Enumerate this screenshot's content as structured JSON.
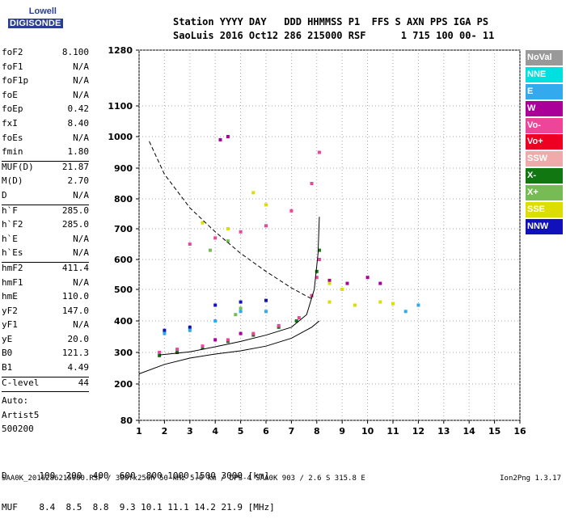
{
  "logo": {
    "line1": "Lowell",
    "line2": "DIGISONDE"
  },
  "header": {
    "line1": "Station YYYY DAY   DDD HHMMSS P1  FFS S AXN PPS IGA PS",
    "line2": "SaoLuis 2016 Oct12 286 215000 RSF      1 715 100 00- 11"
  },
  "params_top": [
    {
      "name": "foF2",
      "value": "8.100"
    },
    {
      "name": "foF1",
      "value": "N/A"
    },
    {
      "name": "foF1p",
      "value": "N/A"
    },
    {
      "name": "foE",
      "value": "N/A"
    },
    {
      "name": "foEp",
      "value": "0.42"
    },
    {
      "name": "fxI",
      "value": "8.40"
    },
    {
      "name": "foEs",
      "value": "N/A"
    },
    {
      "name": "fmin",
      "value": "1.80"
    }
  ],
  "params_muf": [
    {
      "name": "MUF(D)",
      "value": "21.87"
    },
    {
      "name": "M(D)",
      "value": "2.70"
    },
    {
      "name": "D",
      "value": "N/A"
    }
  ],
  "params_h": [
    {
      "name": "h`F",
      "value": "285.0"
    },
    {
      "name": "h`F2",
      "value": "285.0"
    },
    {
      "name": "h`E",
      "value": "N/A"
    },
    {
      "name": "h`Es",
      "value": "N/A"
    }
  ],
  "params_hm": [
    {
      "name": "hmF2",
      "value": "411.4"
    },
    {
      "name": "hmF1",
      "value": "N/A"
    },
    {
      "name": "hmE",
      "value": "110.0"
    },
    {
      "name": "yF2",
      "value": "147.0"
    },
    {
      "name": "yF1",
      "value": "N/A"
    },
    {
      "name": "yE",
      "value": "20.0"
    },
    {
      "name": "B0",
      "value": "121.3"
    },
    {
      "name": "B1",
      "value": "4.49"
    }
  ],
  "clevel": {
    "name": "C-level",
    "value": "44"
  },
  "auto": {
    "line1": "Auto:",
    "line2": "Artist5",
    "line3": "500200"
  },
  "legend": [
    {
      "label": "NoVal",
      "color": "#999999"
    },
    {
      "label": "NNE",
      "color": "#00e0e0"
    },
    {
      "label": "E",
      "color": "#33aaee"
    },
    {
      "label": "W",
      "color": "#aa0099"
    },
    {
      "label": "Vo-",
      "color": "#ee4499"
    },
    {
      "label": "Vo+",
      "color": "#ee0022"
    },
    {
      "label": "SSW",
      "color": "#f0aaaa"
    },
    {
      "label": "X-",
      "color": "#117711"
    },
    {
      "label": "X+",
      "color": "#77bb55"
    },
    {
      "label": "SSE",
      "color": "#dddd00"
    },
    {
      "label": "NNW",
      "color": "#1111bb"
    }
  ],
  "chart_data": {
    "type": "scatter",
    "x_ticks": [
      1,
      2,
      3,
      4,
      5,
      6,
      7,
      8,
      9,
      10,
      11,
      12,
      13,
      14,
      15,
      16
    ],
    "y_ticks": [
      80,
      200,
      300,
      400,
      500,
      600,
      700,
      800,
      900,
      1000,
      1100,
      1280
    ],
    "xlim": [
      1,
      16
    ],
    "ylim": [
      80,
      1280
    ],
    "series": [
      {
        "name": "X-",
        "color": "#117711",
        "points": [
          [
            1.8,
            290
          ],
          [
            2.5,
            300
          ],
          [
            3.5,
            315
          ],
          [
            4.5,
            335
          ],
          [
            5.5,
            355
          ],
          [
            6.5,
            380
          ],
          [
            7.2,
            400
          ],
          [
            7.8,
            480
          ],
          [
            8.0,
            560
          ],
          [
            8.1,
            630
          ]
        ]
      },
      {
        "name": "Vo-",
        "color": "#ee4499",
        "points": [
          [
            1.8,
            300
          ],
          [
            2.5,
            310
          ],
          [
            3.5,
            320
          ],
          [
            4.5,
            340
          ],
          [
            5.5,
            360
          ],
          [
            6.5,
            385
          ],
          [
            7.3,
            410
          ],
          [
            7.8,
            480
          ],
          [
            8.0,
            540
          ],
          [
            8.1,
            600
          ],
          [
            3,
            650
          ],
          [
            4,
            670
          ],
          [
            5,
            690
          ],
          [
            6,
            710
          ],
          [
            7,
            760
          ],
          [
            7.8,
            850
          ],
          [
            8.1,
            950
          ]
        ]
      },
      {
        "name": "W",
        "color": "#aa0099",
        "points": [
          [
            4.2,
            990
          ],
          [
            4.5,
            1000
          ],
          [
            8.5,
            530
          ],
          [
            9.2,
            520
          ],
          [
            10.0,
            540
          ],
          [
            10.5,
            520
          ],
          [
            4,
            340
          ],
          [
            5,
            360
          ]
        ]
      },
      {
        "name": "SSE",
        "color": "#dddd00",
        "points": [
          [
            8.5,
            460
          ],
          [
            9.5,
            450
          ],
          [
            10.5,
            460
          ],
          [
            11.0,
            455
          ],
          [
            5.5,
            820
          ],
          [
            6,
            780
          ],
          [
            3.5,
            720
          ],
          [
            4.5,
            700
          ],
          [
            8.5,
            520
          ],
          [
            9,
            500
          ]
        ]
      },
      {
        "name": "NNW",
        "color": "#1111bb",
        "points": [
          [
            2,
            370
          ],
          [
            3,
            380
          ],
          [
            4,
            450
          ],
          [
            5,
            460
          ],
          [
            6,
            465
          ]
        ]
      },
      {
        "name": "E",
        "color": "#33aaee",
        "points": [
          [
            2,
            360
          ],
          [
            3,
            370
          ],
          [
            4,
            400
          ],
          [
            5,
            430
          ],
          [
            6,
            430
          ],
          [
            11.5,
            430
          ],
          [
            12,
            450
          ]
        ]
      },
      {
        "name": "X+",
        "color": "#77bb55",
        "points": [
          [
            4.8,
            420
          ],
          [
            5.0,
            440
          ],
          [
            3.8,
            630
          ],
          [
            4.5,
            660
          ]
        ]
      }
    ]
  },
  "footer": {
    "row_d": "D      100  200  400  600  800 1000 1500 3000 [km]",
    "row_muf": "MUF    8.4  8.5  8.8  9.3 10.1 11.1 14.2 21.9 [MHz]",
    "info": "SAA0K_2016286215000.RSF / 300fx256h 50 kHz 5.0 km / DPS-4 SAA0K 903 / 2.6 S 315.8 E",
    "version": "Ion2Png 1.3.17"
  }
}
